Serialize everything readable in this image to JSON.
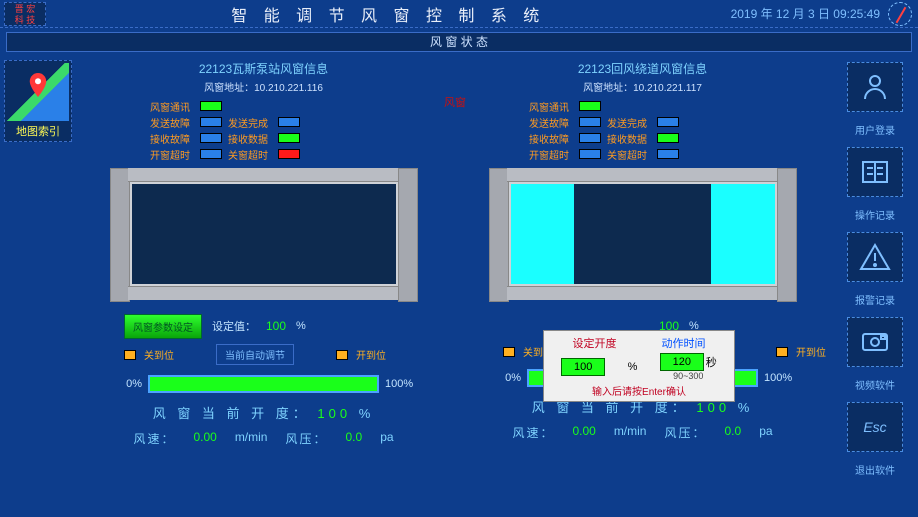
{
  "header": {
    "logo_top": "晋 宏",
    "logo_bot": "科 技",
    "title": "智 能 调 节 风 窗 控 制 系 统",
    "datetime": "2019 年 12 月 3 日   09:25:49"
  },
  "statusbar": "风 窗 状 态",
  "map_label": "地图索引",
  "mid_note": "风窗",
  "status_labels": {
    "comm": "风窗通讯",
    "tx_fault": "发送故障",
    "tx_done": "发送完成",
    "rx_fault": "接收故障",
    "rx_data": "接收数据",
    "open_to": "开窗超时",
    "close_to": "关窗超时"
  },
  "panels": [
    {
      "title": "22123瓦斯泵站风窗信息",
      "addr_prefix": "风窗地址：",
      "addr": "10.210.221.116",
      "lamps": {
        "comm": "green",
        "tx_fault": "blue",
        "tx_done": "blue",
        "rx_fault": "blue",
        "rx_data": "green",
        "open_to": "blue",
        "close_to": "red"
      },
      "window_open": false,
      "set_button": "风窗参数设定",
      "set_label": "设定值：",
      "set_value": "100",
      "set_unit": "%",
      "limit_close": "关到位",
      "auto_btn": "当前自动调节",
      "limit_open": "开到位",
      "prog_lo": "0%",
      "prog_hi": "100%",
      "prog_pct": 100,
      "open_label": "风 窗 当 前 开 度：",
      "open_val": "100",
      "open_unit": "%",
      "met": {
        "ws_lab": "风速：",
        "ws_val": "0.00",
        "ws_unit": "m/min",
        "wp_lab": "风压：",
        "wp_val": "0.0",
        "wp_unit": "pa"
      }
    },
    {
      "title": "22123回风绕道风窗信息",
      "addr_prefix": "风窗地址：",
      "addr": "10.210.221.117",
      "lamps": {
        "comm": "green",
        "tx_fault": "blue",
        "tx_done": "blue",
        "rx_fault": "blue",
        "rx_data": "green",
        "open_to": "blue",
        "close_to": "blue"
      },
      "window_open": true,
      "set_label": "设定值：",
      "set_value": "100",
      "set_unit": "%",
      "limit_close": "关到位",
      "limit_open": "开到位",
      "prog_lo": "0%",
      "prog_hi": "100%",
      "prog_pct": 100,
      "open_label": "风 窗 当 前 开 度：",
      "open_val": "100",
      "open_unit": "%",
      "met": {
        "ws_lab": "风速：",
        "ws_val": "0.00",
        "ws_unit": "m/min",
        "wp_lab": "风压：",
        "wp_val": "0.0",
        "wp_unit": "pa"
      }
    }
  ],
  "popup": {
    "col_a": "设定开度",
    "col_b": "动作时间",
    "val_a": "100",
    "unit_a": "%",
    "val_b": "120",
    "unit_b": "秒",
    "range_b": "90~300",
    "hint": "输入后请按Enter确认"
  },
  "tools": [
    {
      "id": "user-login",
      "label": "用户登录"
    },
    {
      "id": "op-log",
      "label": "操作记录"
    },
    {
      "id": "alarm-log",
      "label": "报警记录"
    },
    {
      "id": "video",
      "label": "视频软件"
    },
    {
      "id": "exit",
      "label": "退出软件"
    }
  ]
}
